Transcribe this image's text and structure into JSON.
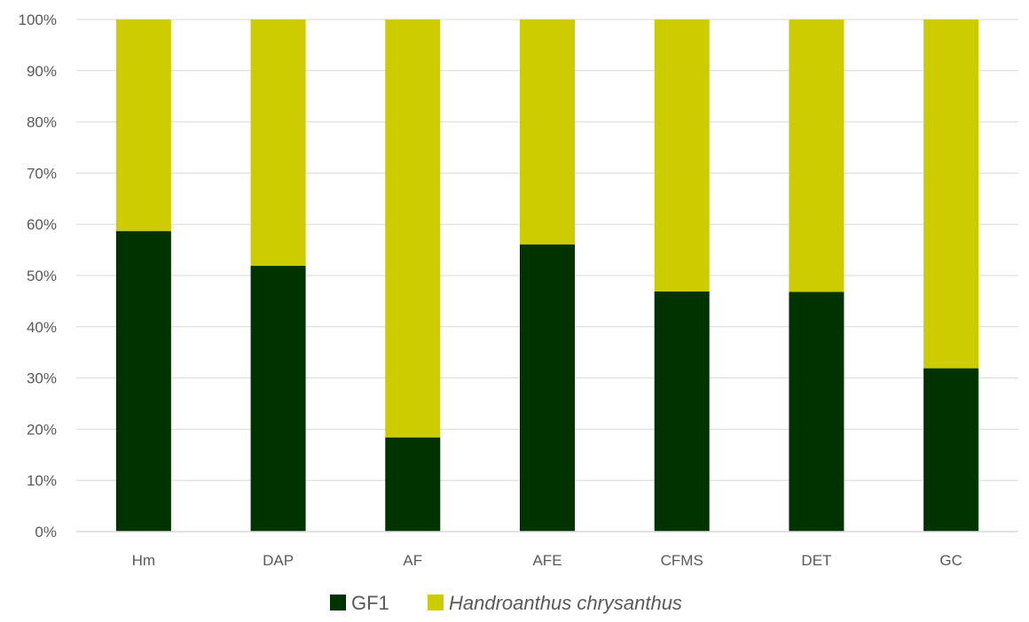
{
  "chart_data": {
    "type": "bar",
    "stacked": true,
    "percent_stacked": true,
    "categories": [
      "Hm",
      "DAP",
      "AF",
      "AFE",
      "CFMS",
      "DET",
      "GC"
    ],
    "series": [
      {
        "name": "GF1",
        "color": "#003300",
        "values": [
          58.7,
          51.9,
          18.4,
          56.1,
          46.9,
          46.8,
          31.9
        ]
      },
      {
        "name": "Handroanthus chrysanthus",
        "color": "#cccc00",
        "italic": true,
        "values": [
          41.3,
          48.1,
          81.6,
          43.9,
          53.1,
          53.2,
          68.1
        ]
      }
    ],
    "ylim": [
      0,
      100
    ],
    "yticks": [
      "0%",
      "10%",
      "20%",
      "30%",
      "40%",
      "50%",
      "60%",
      "70%",
      "80%",
      "90%",
      "100%"
    ],
    "xlabel": "",
    "ylabel": "",
    "grid": true,
    "legend_position": "bottom"
  }
}
